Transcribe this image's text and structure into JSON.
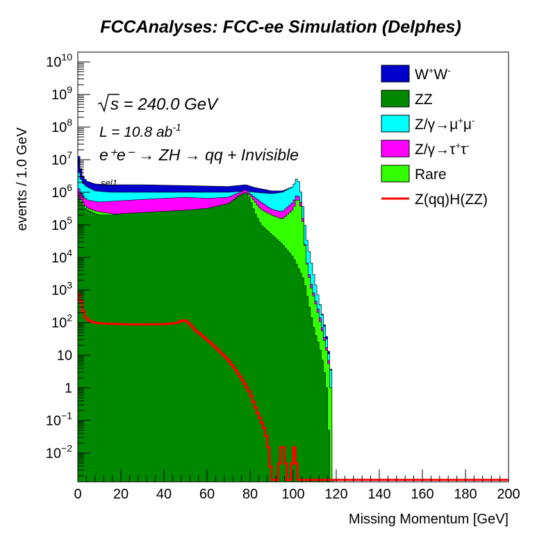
{
  "chart_data": {
    "type": "area",
    "title": "FCCAnalyses: FCC-ee Simulation (Delphes)",
    "xlabel": "Missing Momentum [GeV]",
    "ylabel": "events / 1.0 GeV",
    "xlim": [
      0,
      200
    ],
    "ylim": [
      0.0013,
      20000000000
    ],
    "yscale": "log",
    "stacked": true,
    "xticks": [
      "0",
      "20",
      "40",
      "60",
      "80",
      "100",
      "120",
      "140",
      "160",
      "180",
      "200"
    ],
    "yticks": [
      {
        "base": "10",
        "exp": "10",
        "value": 10000000000
      },
      {
        "base": "10",
        "exp": "9",
        "value": 1000000000
      },
      {
        "base": "10",
        "exp": "8",
        "value": 100000000
      },
      {
        "base": "10",
        "exp": "7",
        "value": 10000000
      },
      {
        "base": "10",
        "exp": "6",
        "value": 1000000
      },
      {
        "base": "10",
        "exp": "5",
        "value": 100000
      },
      {
        "base": "10",
        "exp": "4",
        "value": 10000
      },
      {
        "base": "10",
        "exp": "3",
        "value": 1000
      },
      {
        "base": "10",
        "exp": "2",
        "value": 100
      },
      {
        "base": "10",
        "exp": "",
        "value": 10
      },
      {
        "base": "1",
        "exp": "",
        "value": 1
      },
      {
        "base": "10",
        "exp": "−1",
        "value": 0.1
      },
      {
        "base": "10",
        "exp": "−2",
        "value": 0.01
      }
    ],
    "annotations": {
      "sqrt_s": "s = 240.0 GeV",
      "lumi_prefix": "L = 10.8 ab",
      "lumi_exp": "-1",
      "process": "e⁺e⁻ → ZH → qq + Invisible",
      "selection": "sel1"
    },
    "legend_position": "top-right",
    "legend": [
      {
        "label_html": "W<tspan dy='-7' font-size='12'>+</tspan><tspan dy='7'>W</tspan><tspan dy='-7' font-size='12'>-</tspan>",
        "label": "W+W-",
        "color": "#0000cc",
        "kind": "fill"
      },
      {
        "label": "ZZ",
        "color": "#008800",
        "kind": "fill"
      },
      {
        "label": "Z/γ→μ+μ-",
        "color": "#00ffff",
        "kind": "fill"
      },
      {
        "label": "Z/γ→τ+τ-",
        "color": "#ff00ff",
        "kind": "fill"
      },
      {
        "label": "Rare",
        "color": "#33ff00",
        "kind": "fill"
      },
      {
        "label": "Z(qq)H(ZZ)",
        "color": "#ff0000",
        "kind": "line"
      }
    ],
    "cumulative_series": [
      {
        "name": "ZZ",
        "color": "#008800",
        "points": [
          [
            0,
            700000
          ],
          [
            1,
            600000
          ],
          [
            2,
            400000
          ],
          [
            4,
            300000
          ],
          [
            6,
            250000
          ],
          [
            8,
            220000
          ],
          [
            10,
            200000
          ],
          [
            15,
            200000
          ],
          [
            20,
            220000
          ],
          [
            30,
            240000
          ],
          [
            40,
            260000
          ],
          [
            50,
            280000
          ],
          [
            60,
            320000
          ],
          [
            70,
            450000
          ],
          [
            75,
            800000
          ],
          [
            78,
            1000000
          ],
          [
            80,
            600000
          ],
          [
            82,
            250000
          ],
          [
            85,
            100000
          ],
          [
            90,
            50000
          ],
          [
            95,
            25000
          ],
          [
            100,
            10000
          ],
          [
            105,
            2000
          ],
          [
            108,
            200
          ],
          [
            110,
            50
          ],
          [
            112,
            20
          ],
          [
            114,
            5
          ],
          [
            115.5,
            1
          ],
          [
            116,
            0.3
          ],
          [
            116.5,
            0.05
          ],
          [
            117,
            0.0015
          ]
        ]
      },
      {
        "name": "Rare",
        "color": "#33ff00",
        "points": [
          [
            0,
            800000
          ],
          [
            1,
            700000
          ],
          [
            2,
            500000
          ],
          [
            4,
            350000
          ],
          [
            6,
            300000
          ],
          [
            8,
            270000
          ],
          [
            10,
            250000
          ],
          [
            20,
            200000
          ],
          [
            30,
            160000
          ],
          [
            40,
            150000
          ],
          [
            50,
            160000
          ],
          [
            60,
            200000
          ],
          [
            70,
            400000
          ],
          [
            75,
            800000
          ],
          [
            78,
            1000000
          ],
          [
            80,
            800000
          ],
          [
            85,
            300000
          ],
          [
            90,
            200000
          ],
          [
            95,
            150000
          ],
          [
            100,
            300000
          ],
          [
            102,
            700000
          ],
          [
            104,
            300000
          ],
          [
            106,
            10000
          ],
          [
            108,
            1500
          ],
          [
            110,
            500
          ],
          [
            112,
            150
          ],
          [
            114,
            40
          ],
          [
            116,
            10
          ],
          [
            117,
            3
          ],
          [
            117.5,
            1
          ],
          [
            118,
            0.0015
          ]
        ]
      },
      {
        "name": "Z/γ→τ+τ-",
        "color": "#ff00ff",
        "points": [
          [
            0,
            1500000
          ],
          [
            2,
            800000
          ],
          [
            4,
            600000
          ],
          [
            6,
            550000
          ],
          [
            10,
            500000
          ],
          [
            20,
            550000
          ],
          [
            30,
            600000
          ],
          [
            40,
            650000
          ],
          [
            50,
            700000
          ],
          [
            60,
            650000
          ],
          [
            70,
            700000
          ],
          [
            78,
            1200000
          ],
          [
            80,
            900000
          ],
          [
            85,
            500000
          ],
          [
            90,
            300000
          ],
          [
            95,
            250000
          ],
          [
            100,
            500000
          ],
          [
            102,
            900000
          ],
          [
            104,
            400000
          ],
          [
            106,
            10000
          ],
          [
            108,
            2000
          ],
          [
            110,
            600
          ],
          [
            112,
            200
          ],
          [
            114,
            50
          ],
          [
            116,
            12
          ],
          [
            117,
            4
          ],
          [
            118,
            0.0015
          ]
        ]
      },
      {
        "name": "Z/γ→μ+μ-",
        "color": "#00ffff",
        "points": [
          [
            0,
            5000000
          ],
          [
            2,
            2000000
          ],
          [
            4,
            1500000
          ],
          [
            8,
            1100000
          ],
          [
            15,
            1000000
          ],
          [
            30,
            1000000
          ],
          [
            50,
            1000000
          ],
          [
            70,
            1000000
          ],
          [
            78,
            1100000
          ],
          [
            82,
            1000000
          ],
          [
            90,
            900000
          ],
          [
            95,
            1000000
          ],
          [
            100,
            1500000
          ],
          [
            102,
            3000000
          ],
          [
            103,
            1500000
          ],
          [
            104,
            700000
          ],
          [
            106,
            50000
          ],
          [
            108,
            10000
          ],
          [
            110,
            2000
          ],
          [
            112,
            500
          ],
          [
            114,
            120
          ],
          [
            116,
            20
          ],
          [
            117,
            6
          ],
          [
            118,
            2
          ],
          [
            118.5,
            0.0015
          ]
        ]
      },
      {
        "name": "W+W-",
        "color": "#0000cc",
        "points": [
          [
            0,
            20000000
          ],
          [
            1,
            8000000
          ],
          [
            2,
            3500000
          ],
          [
            4,
            2200000
          ],
          [
            8,
            1800000
          ],
          [
            15,
            1700000
          ],
          [
            30,
            1700000
          ],
          [
            50,
            1600000
          ],
          [
            70,
            1500000
          ],
          [
            78,
            1700000
          ],
          [
            82,
            1400000
          ],
          [
            90,
            1100000
          ],
          [
            95,
            1100000
          ],
          [
            100,
            1500000
          ],
          [
            102,
            3000000
          ],
          [
            103,
            1500000
          ],
          [
            104,
            700000
          ],
          [
            106,
            50000
          ],
          [
            108,
            10000
          ],
          [
            110,
            2000
          ],
          [
            112,
            500
          ],
          [
            114,
            130
          ],
          [
            116,
            25
          ],
          [
            117,
            7
          ],
          [
            118,
            2
          ],
          [
            118.5,
            0.0015
          ]
        ]
      }
    ],
    "signal": {
      "name": "Z(qq)H(ZZ)",
      "color": "#ff0000",
      "points": [
        [
          0,
          800
        ],
        [
          1,
          700
        ],
        [
          2,
          300
        ],
        [
          3,
          170
        ],
        [
          4,
          130
        ],
        [
          6,
          110
        ],
        [
          8,
          100
        ],
        [
          10,
          95
        ],
        [
          15,
          92
        ],
        [
          20,
          90
        ],
        [
          25,
          88
        ],
        [
          30,
          88
        ],
        [
          35,
          89
        ],
        [
          40,
          90
        ],
        [
          45,
          95
        ],
        [
          48,
          110
        ],
        [
          50,
          120
        ],
        [
          52,
          90
        ],
        [
          55,
          55
        ],
        [
          60,
          30
        ],
        [
          65,
          15
        ],
        [
          70,
          7
        ],
        [
          75,
          2.5
        ],
        [
          80,
          0.7
        ],
        [
          83,
          0.2
        ],
        [
          85,
          0.1
        ],
        [
          87,
          0.05
        ],
        [
          89,
          0.01
        ],
        [
          90,
          0.0015
        ],
        [
          93,
          0.0015
        ],
        [
          94,
          0.015
        ],
        [
          96,
          0.015
        ],
        [
          97,
          0.0015
        ],
        [
          99,
          0.0015
        ],
        [
          100,
          0.015
        ],
        [
          101,
          0.015
        ],
        [
          102,
          0.0015
        ],
        [
          200,
          0.0015
        ]
      ]
    }
  }
}
